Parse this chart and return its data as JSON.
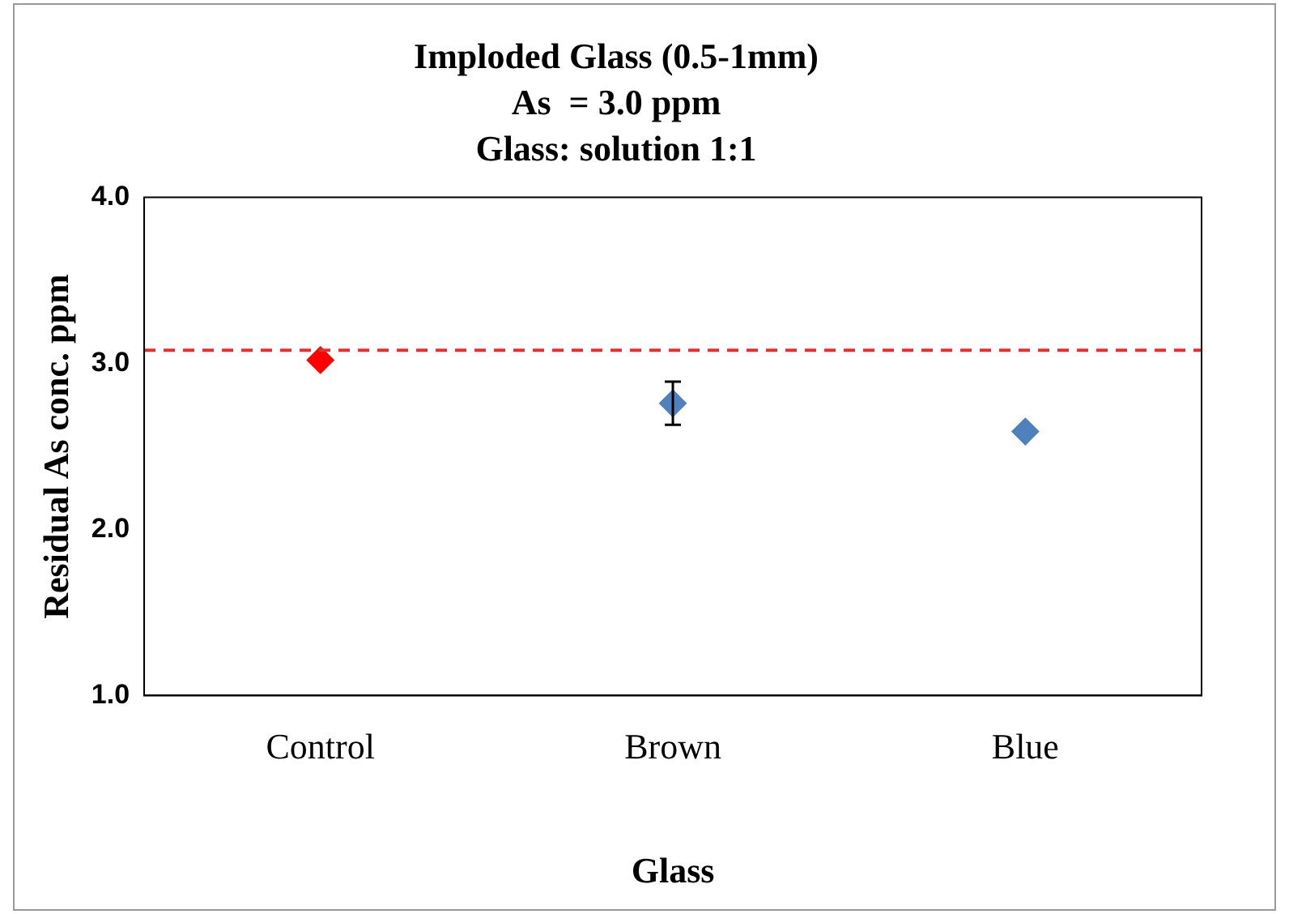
{
  "chart_data": {
    "type": "scatter",
    "title": [
      "Imploded Glass (0.5-1mm)",
      "As  = 3.0 ppm",
      "Glass: solution 1:1"
    ],
    "xlabel": "Glass",
    "ylabel": "Residual As conc. ppm",
    "categories": [
      "Control",
      "Brown",
      "Blue"
    ],
    "series": [
      {
        "colors": [
          "#ff0000",
          "#4f81bd",
          "#4f81bd"
        ],
        "values": [
          3.02,
          2.76,
          2.59
        ],
        "errors": [
          null,
          0.13,
          null
        ]
      }
    ],
    "ylim": [
      1.0,
      4.0
    ],
    "yticks": [
      {
        "value": 1,
        "label": "1.0"
      },
      {
        "value": 2,
        "label": "2.0"
      },
      {
        "value": 3,
        "label": "3.0"
      },
      {
        "value": 4,
        "label": "4.0"
      }
    ],
    "ref_lines": [
      {
        "axis": "y",
        "value": 3.08,
        "color": "#e03030",
        "line_style": "dashed"
      }
    ],
    "marker": "diamond",
    "grid": false,
    "legend": false
  }
}
